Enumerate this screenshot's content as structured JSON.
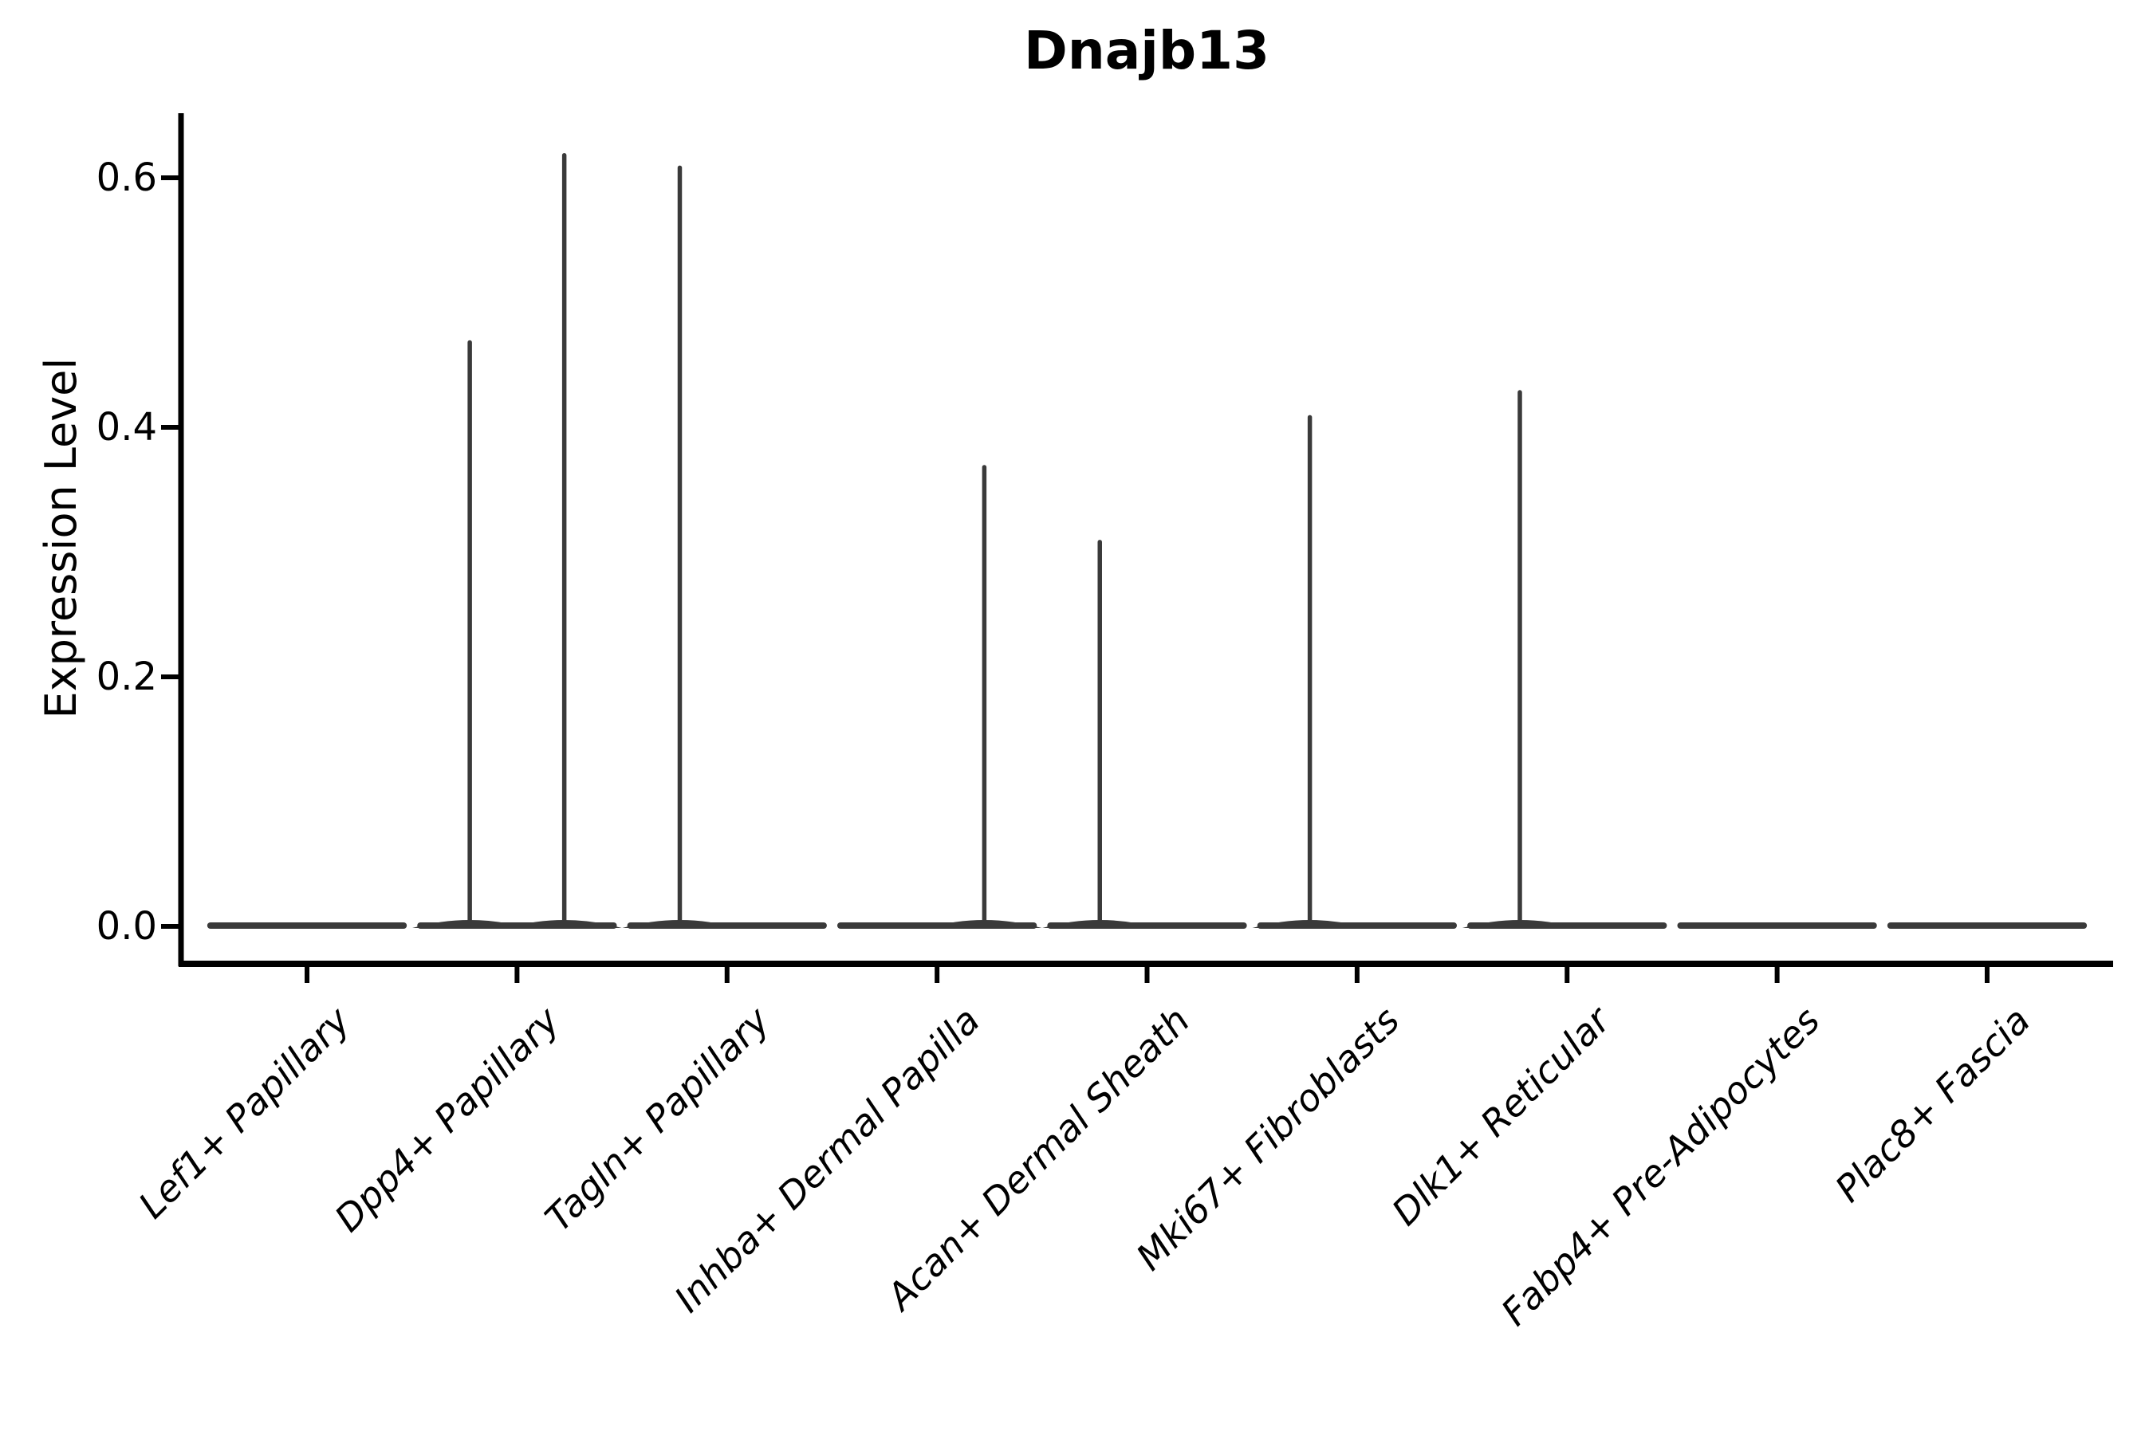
{
  "chart_data": {
    "type": "violin",
    "title": "Dnajb13",
    "ylabel": "Expression Level",
    "xlabel": "",
    "categories": [
      "Lef1+ Papillary",
      "Dpp4+ Papillary",
      "Tagln+ Papillary",
      "Inhba+ Dermal Papilla",
      "Acan+ Dermal Sheath",
      "Mki67+ Fibroblasts",
      "Dlk1+ Reticular",
      "Fabp4+ Pre-Adipocytes",
      "Plac8+ Fascia"
    ],
    "y_tick_labels": [
      "0.0",
      "0.2",
      "0.4",
      "0.6"
    ],
    "y_tick_values": [
      0.0,
      0.2,
      0.4,
      0.6
    ],
    "ylim": [
      -0.03,
      0.65
    ],
    "grid": false,
    "legend_position": "none",
    "description": "Expression mostly 0 in all clusters; violins collapse to flat baselines with thin density spikes up to the max expressing cells.",
    "violins": [
      {
        "category": "Lef1+ Papillary",
        "baseline": 0,
        "spikes": []
      },
      {
        "category": "Dpp4+ Papillary",
        "baseline": 0,
        "spikes": [
          {
            "offset": -0.225,
            "max": 0.47
          },
          {
            "offset": 0.225,
            "max": 0.62
          }
        ]
      },
      {
        "category": "Tagln+ Papillary",
        "baseline": 0,
        "spikes": [
          {
            "offset": -0.225,
            "max": 0.61
          }
        ]
      },
      {
        "category": "Inhba+ Dermal Papilla",
        "baseline": 0,
        "spikes": [
          {
            "offset": 0.225,
            "max": 0.37
          }
        ]
      },
      {
        "category": "Acan+ Dermal Sheath",
        "baseline": 0,
        "spikes": [
          {
            "offset": -0.225,
            "max": 0.31
          }
        ]
      },
      {
        "category": "Mki67+ Fibroblasts",
        "baseline": 0,
        "spikes": [
          {
            "offset": -0.225,
            "max": 0.41
          }
        ]
      },
      {
        "category": "Dlk1+ Reticular",
        "baseline": 0,
        "spikes": [
          {
            "offset": -0.225,
            "max": 0.43
          }
        ]
      },
      {
        "category": "Fabp4+ Pre-Adipocytes",
        "baseline": 0,
        "spikes": []
      },
      {
        "category": "Plac8+ Fascia",
        "baseline": 0,
        "spikes": []
      }
    ],
    "colors": {
      "violin_stroke": "#3a3a3a",
      "axis": "#000000",
      "text": "#000000",
      "background": "#ffffff"
    }
  }
}
